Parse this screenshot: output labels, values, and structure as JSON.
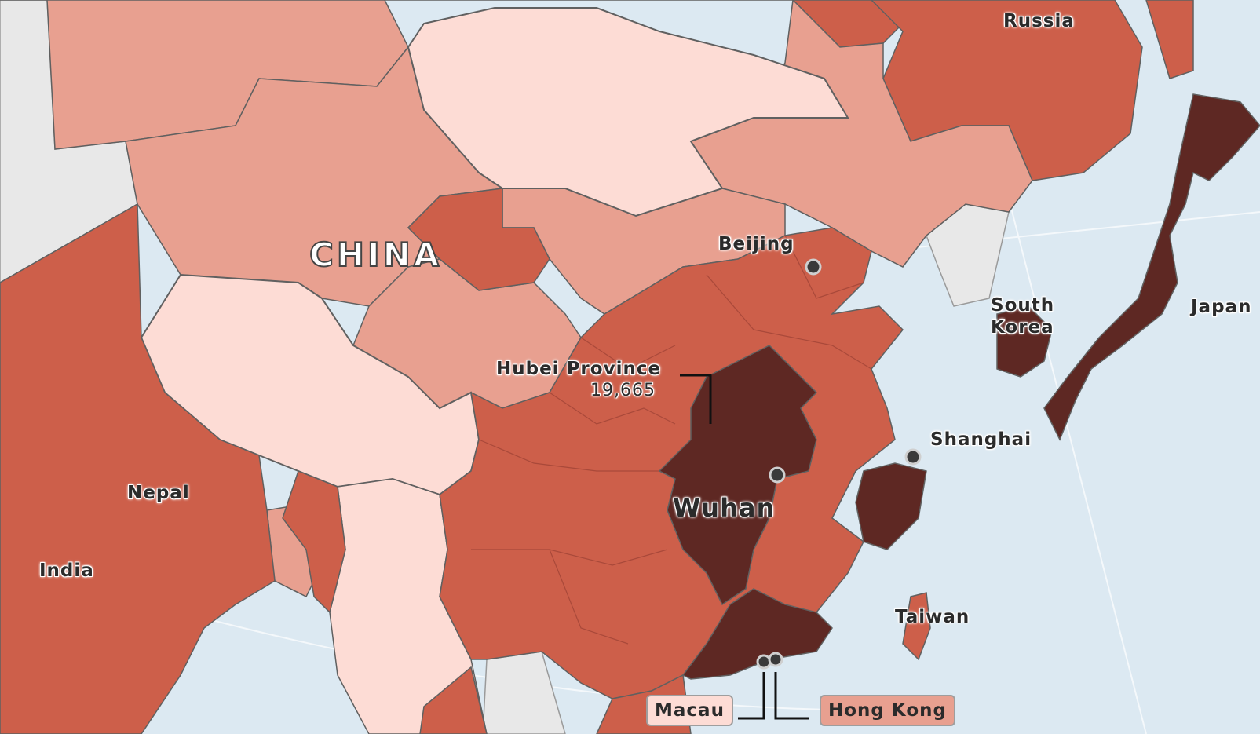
{
  "colors": {
    "sea": "#dce9f2",
    "neutral": "#e8e8e8",
    "lightest": "#fddcd5",
    "light": "#e8a090",
    "medium": "#cd5f4a",
    "dark": "#5e2823",
    "border": "#606060",
    "marker": "#3a3a3a"
  },
  "labels": {
    "country": "CHINA",
    "russia": "Russia",
    "beijing": "Beijing",
    "south_korea_1": "South",
    "south_korea_2": "Korea",
    "japan": "Japan",
    "hubei": "Hubei Province",
    "hubei_count": "19,665",
    "shanghai": "Shanghai",
    "nepal": "Nepal",
    "wuhan": "Wuhan",
    "india": "India",
    "taiwan": "Taiwan",
    "macau": "Macau",
    "hong_kong": "Hong Kong"
  }
}
